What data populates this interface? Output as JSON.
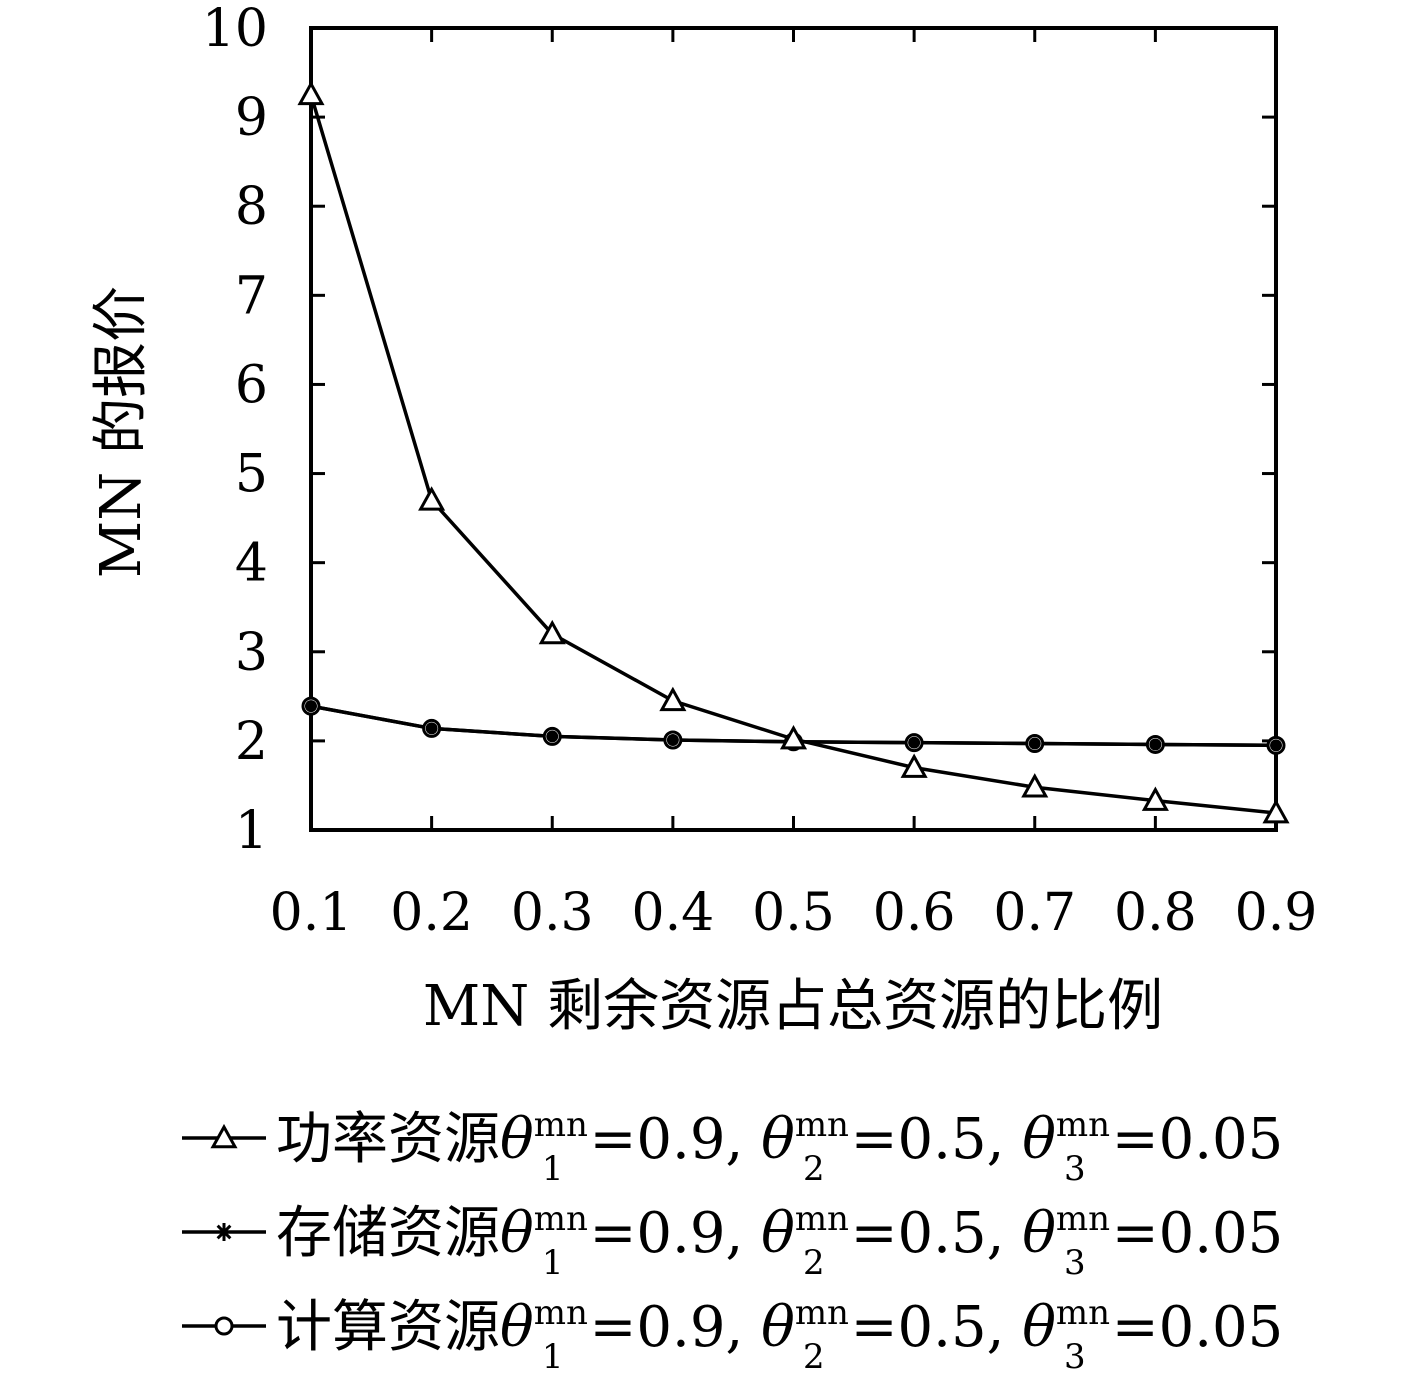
{
  "chart_data": {
    "type": "line",
    "xlabel": "MN 剩余资源占总资源的比例",
    "ylabel": "MN 的报价",
    "xlim": [
      0.1,
      0.9
    ],
    "ylim": [
      1,
      10
    ],
    "x_ticks": [
      "0.1",
      "0.2",
      "0.3",
      "0.4",
      "0.5",
      "0.6",
      "0.7",
      "0.8",
      "0.9"
    ],
    "y_ticks": [
      "1",
      "2",
      "3",
      "4",
      "5",
      "6",
      "7",
      "8",
      "9",
      "10"
    ],
    "grid": false,
    "legend_position": "bottom",
    "x": [
      0.1,
      0.2,
      0.3,
      0.4,
      0.5,
      0.6,
      0.7,
      0.8,
      0.9
    ],
    "series": [
      {
        "name_prefix": "功率资源",
        "marker": "triangle",
        "values": [
          9.25,
          4.7,
          3.2,
          2.45,
          2.02,
          1.7,
          1.48,
          1.33,
          1.19
        ]
      },
      {
        "name_prefix": "存储资源",
        "marker": "asterisk",
        "values": [
          2.39,
          2.14,
          2.05,
          2.01,
          1.99,
          1.98,
          1.97,
          1.96,
          1.95
        ]
      },
      {
        "name_prefix": "计算资源",
        "marker": "circle",
        "values": [
          2.39,
          2.14,
          2.05,
          2.01,
          1.99,
          1.98,
          1.97,
          1.96,
          1.95
        ]
      }
    ],
    "legend_params": {
      "symbol": "θ",
      "superscript": "mn",
      "terms": [
        {
          "sub": "1",
          "value": "=0.9, "
        },
        {
          "sub": "2",
          "value": "=0.5, "
        },
        {
          "sub": "3",
          "value": "=0.05"
        }
      ]
    },
    "line_color": "#000000"
  }
}
